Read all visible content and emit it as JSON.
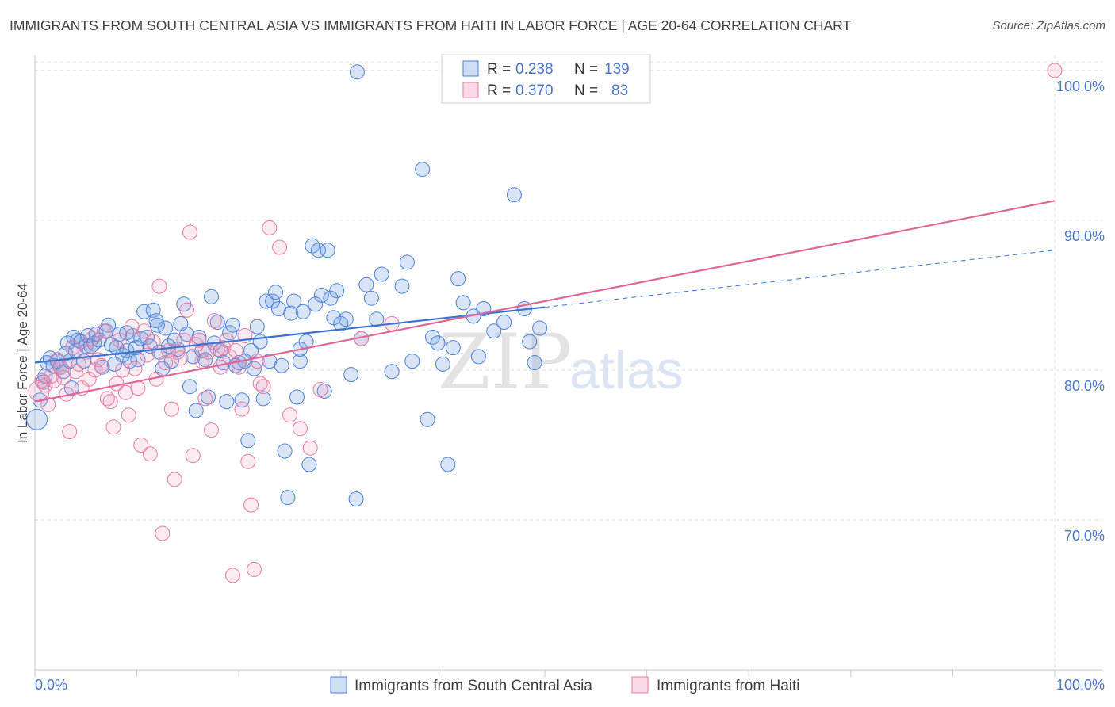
{
  "title": "IMMIGRANTS FROM SOUTH CENTRAL ASIA VS IMMIGRANTS FROM HAITI IN LABOR FORCE | AGE 20-64 CORRELATION CHART",
  "source": "Source: ZipAtlas.com",
  "watermark": {
    "zip": "ZIP",
    "atlas": "atlas"
  },
  "legend_top": {
    "rows": [
      {
        "r_label": "R = ",
        "r_value": "0.238",
        "n_label": "N = ",
        "n_value": "139"
      },
      {
        "r_label": "R = ",
        "r_value": "0.370",
        "n_label": "N = ",
        "n_value": "83"
      }
    ]
  },
  "chart_data": {
    "type": "scatter",
    "title": "IMMIGRANTS FROM SOUTH CENTRAL ASIA VS IMMIGRANTS FROM HAITI IN LABOR FORCE | AGE 20-64 CORRELATION CHART",
    "xlabel": "",
    "ylabel": "In Labor Force | Age 20-64",
    "xlim": [
      0,
      100
    ],
    "ylim": [
      60,
      101
    ],
    "x_tick_labels": [
      "0.0%",
      "100.0%"
    ],
    "y_ticks": [
      70,
      80,
      90,
      100
    ],
    "y_tick_labels": [
      "70.0%",
      "80.0%",
      "90.0%",
      "100.0%"
    ],
    "grid": true,
    "legend": "bottom-center",
    "colors": {
      "blue": "#4a7fd4",
      "pink": "#e57aa2",
      "tick": "#4a77c9"
    },
    "series": [
      {
        "name": "Immigrants from South Central Asia",
        "color": "#4a7fd4",
        "r": 0.238,
        "n": 139,
        "trend": {
          "x0": 0,
          "y0": 80.5,
          "x1": 50,
          "y1": 84.2,
          "dashed_to_x": 100,
          "dashed_to_y": 88.0
        },
        "points": [
          [
            0.2,
            76.7
          ],
          [
            0.5,
            78.0
          ],
          [
            0.8,
            79.2
          ],
          [
            1.0,
            79.6
          ],
          [
            1.2,
            80.5
          ],
          [
            1.5,
            80.8
          ],
          [
            1.8,
            80.3
          ],
          [
            2.2,
            80.6
          ],
          [
            2.5,
            80.2
          ],
          [
            2.8,
            79.9
          ],
          [
            3.0,
            81.1
          ],
          [
            3.2,
            81.8
          ],
          [
            3.4,
            80.6
          ],
          [
            3.6,
            78.8
          ],
          [
            3.8,
            82.2
          ],
          [
            4.0,
            81.3
          ],
          [
            4.2,
            82.0
          ],
          [
            4.5,
            81.9
          ],
          [
            4.8,
            80.6
          ],
          [
            5.0,
            81.6
          ],
          [
            5.2,
            82.3
          ],
          [
            5.5,
            81.6
          ],
          [
            5.8,
            81.8
          ],
          [
            6.0,
            82.4
          ],
          [
            6.3,
            82.0
          ],
          [
            6.6,
            80.2
          ],
          [
            7.0,
            82.6
          ],
          [
            7.2,
            83.0
          ],
          [
            7.5,
            81.7
          ],
          [
            7.8,
            80.4
          ],
          [
            8.0,
            81.5
          ],
          [
            8.3,
            82.4
          ],
          [
            8.6,
            81.0
          ],
          [
            9.0,
            81.3
          ],
          [
            9.3,
            80.6
          ],
          [
            9.6,
            82.3
          ],
          [
            9.9,
            81.5
          ],
          [
            10.1,
            80.7
          ],
          [
            10.4,
            82.1
          ],
          [
            10.7,
            83.9
          ],
          [
            11.0,
            82.2
          ],
          [
            11.3,
            81.6
          ],
          [
            11.6,
            84.0
          ],
          [
            11.9,
            83.3
          ],
          [
            12.2,
            81.2
          ],
          [
            12.5,
            80.1
          ],
          [
            12.8,
            82.8
          ],
          [
            13.1,
            81.6
          ],
          [
            13.4,
            80.6
          ],
          [
            13.7,
            82.0
          ],
          [
            14.0,
            81.4
          ],
          [
            14.3,
            83.1
          ],
          [
            14.6,
            84.4
          ],
          [
            14.9,
            82.4
          ],
          [
            15.2,
            78.9
          ],
          [
            15.5,
            80.9
          ],
          [
            15.8,
            77.3
          ],
          [
            16.1,
            82.2
          ],
          [
            16.4,
            81.3
          ],
          [
            16.7,
            80.7
          ],
          [
            17.0,
            78.2
          ],
          [
            17.3,
            84.9
          ],
          [
            17.6,
            81.8
          ],
          [
            17.9,
            83.2
          ],
          [
            18.2,
            81.3
          ],
          [
            18.5,
            80.5
          ],
          [
            18.8,
            77.9
          ],
          [
            19.1,
            82.5
          ],
          [
            19.4,
            83.0
          ],
          [
            19.7,
            80.3
          ],
          [
            20.0,
            80.5
          ],
          [
            20.3,
            78.0
          ],
          [
            20.6,
            80.6
          ],
          [
            20.9,
            75.3
          ],
          [
            21.2,
            81.3
          ],
          [
            21.5,
            80.1
          ],
          [
            21.8,
            82.9
          ],
          [
            22.1,
            81.9
          ],
          [
            22.4,
            78.1
          ],
          [
            22.7,
            84.6
          ],
          [
            23.0,
            80.6
          ],
          [
            23.3,
            84.6
          ],
          [
            23.6,
            85.2
          ],
          [
            23.9,
            84.1
          ],
          [
            24.2,
            80.3
          ],
          [
            24.5,
            74.6
          ],
          [
            24.8,
            71.5
          ],
          [
            25.1,
            83.8
          ],
          [
            25.4,
            84.6
          ],
          [
            25.7,
            78.2
          ],
          [
            26.0,
            80.6
          ],
          [
            26.3,
            83.9
          ],
          [
            26.6,
            81.9
          ],
          [
            26.9,
            73.7
          ],
          [
            27.2,
            88.3
          ],
          [
            27.5,
            84.4
          ],
          [
            27.8,
            88.0
          ],
          [
            28.1,
            85.0
          ],
          [
            28.4,
            78.6
          ],
          [
            28.7,
            88.0
          ],
          [
            29.0,
            84.8
          ],
          [
            29.3,
            83.5
          ],
          [
            29.6,
            85.3
          ],
          [
            30.0,
            83.1
          ],
          [
            30.5,
            83.4
          ],
          [
            31.0,
            79.7
          ],
          [
            31.5,
            71.4
          ],
          [
            32.0,
            82.1
          ],
          [
            32.5,
            85.7
          ],
          [
            33.0,
            84.8
          ],
          [
            33.5,
            83.4
          ],
          [
            34.0,
            86.4
          ],
          [
            35.0,
            79.9
          ],
          [
            36.0,
            85.6
          ],
          [
            36.5,
            87.2
          ],
          [
            37.0,
            80.6
          ],
          [
            38.0,
            93.4
          ],
          [
            38.5,
            76.7
          ],
          [
            39.0,
            82.2
          ],
          [
            39.5,
            81.8
          ],
          [
            40.0,
            80.4
          ],
          [
            40.5,
            73.7
          ],
          [
            41.0,
            81.5
          ],
          [
            41.5,
            86.1
          ],
          [
            42.0,
            84.5
          ],
          [
            43.0,
            83.6
          ],
          [
            43.5,
            80.9
          ],
          [
            44.0,
            84.1
          ],
          [
            45.0,
            82.6
          ],
          [
            46.0,
            83.2
          ],
          [
            47.0,
            91.7
          ],
          [
            48.0,
            84.1
          ],
          [
            48.5,
            81.9
          ],
          [
            49.0,
            80.5
          ],
          [
            49.5,
            82.8
          ],
          [
            31.6,
            99.9
          ],
          [
            12.0,
            83.0
          ],
          [
            9.0,
            82.5
          ],
          [
            26.0,
            81.4
          ]
        ]
      },
      {
        "name": "Immigrants from Haiti",
        "color": "#e57aa2",
        "r": 0.37,
        "n": 83,
        "trend": {
          "x0": 0,
          "y0": 77.9,
          "x1": 100,
          "y1": 91.3
        },
        "points": [
          [
            0.4,
            78.6
          ],
          [
            0.7,
            79.3
          ],
          [
            1.0,
            79.0
          ],
          [
            1.3,
            77.7
          ],
          [
            1.6,
            79.6
          ],
          [
            1.9,
            79.3
          ],
          [
            2.2,
            80.7
          ],
          [
            2.5,
            80.2
          ],
          [
            2.8,
            79.5
          ],
          [
            3.1,
            78.4
          ],
          [
            3.4,
            75.9
          ],
          [
            3.7,
            81.5
          ],
          [
            4.0,
            79.9
          ],
          [
            4.3,
            80.4
          ],
          [
            4.6,
            78.8
          ],
          [
            5.0,
            81.2
          ],
          [
            5.3,
            79.4
          ],
          [
            5.6,
            82.1
          ],
          [
            5.9,
            80.0
          ],
          [
            6.2,
            80.7
          ],
          [
            6.5,
            80.3
          ],
          [
            6.8,
            82.6
          ],
          [
            7.1,
            78.1
          ],
          [
            7.4,
            77.9
          ],
          [
            7.7,
            76.2
          ],
          [
            8.0,
            79.1
          ],
          [
            8.3,
            82.0
          ],
          [
            8.6,
            80.0
          ],
          [
            8.9,
            78.5
          ],
          [
            9.2,
            77.0
          ],
          [
            9.5,
            82.9
          ],
          [
            9.8,
            80.1
          ],
          [
            10.1,
            78.8
          ],
          [
            10.4,
            75.0
          ],
          [
            10.7,
            82.6
          ],
          [
            11.0,
            81.0
          ],
          [
            11.3,
            74.4
          ],
          [
            11.6,
            81.9
          ],
          [
            11.9,
            79.4
          ],
          [
            12.2,
            85.6
          ],
          [
            12.5,
            69.1
          ],
          [
            12.8,
            80.5
          ],
          [
            13.1,
            81.3
          ],
          [
            13.4,
            77.4
          ],
          [
            13.7,
            72.7
          ],
          [
            14.0,
            81.2
          ],
          [
            14.3,
            80.8
          ],
          [
            14.6,
            82.0
          ],
          [
            14.9,
            84.0
          ],
          [
            15.2,
            89.2
          ],
          [
            15.5,
            74.3
          ],
          [
            15.8,
            81.7
          ],
          [
            16.1,
            82.0
          ],
          [
            16.4,
            80.6
          ],
          [
            16.7,
            78.1
          ],
          [
            17.0,
            81.2
          ],
          [
            17.3,
            76.0
          ],
          [
            17.6,
            83.3
          ],
          [
            17.9,
            81.4
          ],
          [
            18.2,
            80.2
          ],
          [
            18.5,
            81.5
          ],
          [
            18.8,
            82.0
          ],
          [
            19.1,
            80.9
          ],
          [
            19.4,
            66.3
          ],
          [
            19.7,
            81.3
          ],
          [
            20.0,
            80.2
          ],
          [
            20.3,
            77.4
          ],
          [
            20.6,
            82.3
          ],
          [
            20.9,
            73.9
          ],
          [
            21.2,
            71.0
          ],
          [
            21.5,
            66.7
          ],
          [
            21.8,
            80.6
          ],
          [
            22.1,
            79.1
          ],
          [
            22.4,
            78.9
          ],
          [
            23.0,
            89.5
          ],
          [
            24.0,
            88.2
          ],
          [
            25.0,
            77.0
          ],
          [
            26.0,
            76.1
          ],
          [
            27.0,
            74.8
          ],
          [
            28.0,
            78.7
          ],
          [
            32.0,
            82.1
          ],
          [
            35.0,
            83.1
          ],
          [
            100.0,
            100.0
          ]
        ]
      }
    ]
  },
  "bottom_legend": [
    "Immigrants from South Central Asia",
    "Immigrants from Haiti"
  ]
}
